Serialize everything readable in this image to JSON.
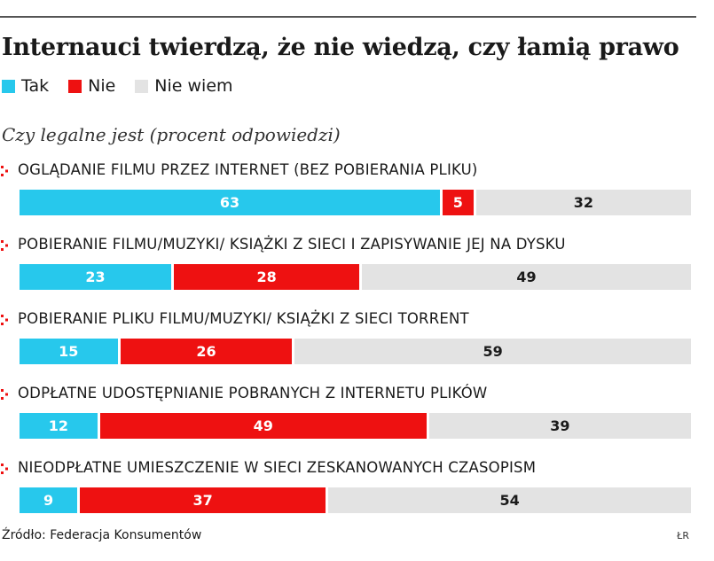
{
  "title": "Internauci twierdzą, że nie wiedzą, czy łamią prawo",
  "subtitle": "Czy legalne jest (procent odpowiedzi)",
  "source": "Źródło: Federacja Konsumentów",
  "credit": "ŁR",
  "colors": {
    "tak": "#27c8ec",
    "nie": "#ee1111",
    "niewiem": "#e3e3e3",
    "marker": "#ee1111"
  },
  "chart_data": {
    "type": "bar",
    "orientation": "horizontal",
    "stacked": true,
    "title": "Internauci twierdzą, że nie wiedzą, czy łamią prawo",
    "subtitle": "Czy legalne jest (procent odpowiedzi)",
    "legend": [
      "Tak",
      "Nie",
      "Nie wiem"
    ],
    "legend_position": "top-left",
    "xlim": [
      0,
      100
    ],
    "grid": false,
    "categories": [
      "OGLĄDANIE FILMU PRZEZ INTERNET (BEZ POBIERANIA PLIKU)",
      "POBIERANIE FILMU/MUZYKI/ KSIĄŻKI Z SIECI I ZAPISYWANIE JEJ NA DYSKU",
      "POBIERANIE PLIKU FILMU/MUZYKI/ KSIĄŻKI Z SIECI TORRENT",
      "ODPŁATNE UDOSTĘPNIANIE POBRANYCH Z INTERNETU PLIKÓW",
      "NIEODPŁATNE UMIESZCZENIE W SIECI ZESKANOWANYCH CZASOPISM"
    ],
    "series": [
      {
        "name": "Tak",
        "key": "tak",
        "values": [
          63,
          23,
          15,
          12,
          9
        ]
      },
      {
        "name": "Nie",
        "key": "nie",
        "values": [
          5,
          28,
          26,
          49,
          37
        ]
      },
      {
        "name": "Nie wiem",
        "key": "niewiem",
        "values": [
          32,
          49,
          59,
          39,
          54
        ]
      }
    ]
  }
}
